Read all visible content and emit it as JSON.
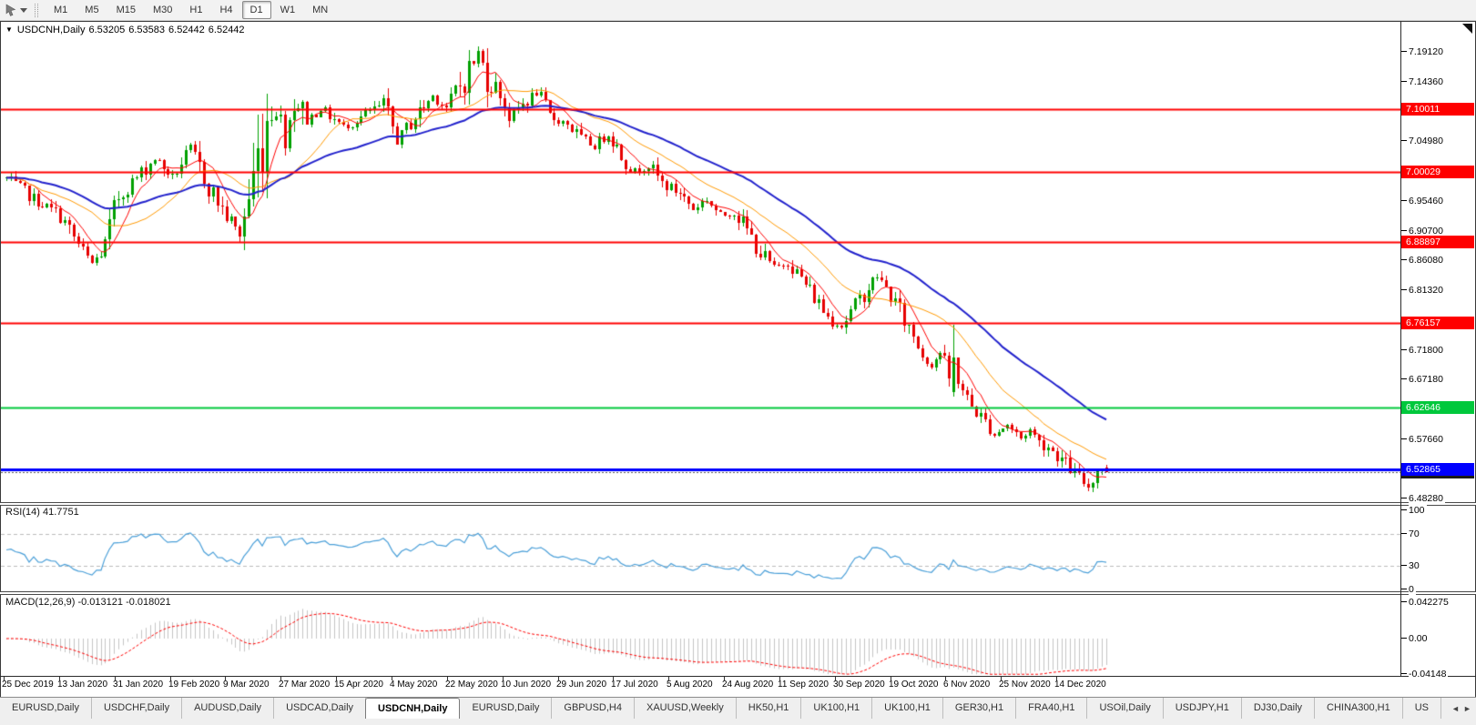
{
  "toolbar": {
    "timeframes": [
      "M1",
      "M5",
      "M15",
      "M30",
      "H1",
      "H4",
      "D1",
      "W1",
      "MN"
    ],
    "active_timeframe": "D1"
  },
  "chart": {
    "title": {
      "collapse_glyph": "▼",
      "symbol": "USDCNH,Daily",
      "open": "6.53205",
      "high": "6.53583",
      "low": "6.52442",
      "close": "6.52442"
    },
    "price_axis": {
      "ticks": [
        "7.19120",
        "7.14360",
        "7.04980",
        "6.95460",
        "6.90700",
        "6.86080",
        "6.81320",
        "6.71800",
        "6.67180",
        "6.57660",
        "6.48280"
      ],
      "badges": [
        {
          "label": "7.10011",
          "color": "#ff0000"
        },
        {
          "label": "7.00029",
          "color": "#ff0000"
        },
        {
          "label": "6.88897",
          "color": "#ff0000"
        },
        {
          "label": "6.76157",
          "color": "#ff0000"
        },
        {
          "label": "6.62646",
          "color": "#00c83c"
        },
        {
          "label": "6.52442",
          "color": "#1a1a1a"
        },
        {
          "label": "6.52865",
          "color": "#0000ff"
        }
      ]
    }
  },
  "indicators": {
    "rsi": {
      "label": "RSI(14) 41.7751",
      "axis_labels": [
        "100",
        "70",
        "30",
        "0"
      ]
    },
    "macd": {
      "label": "MACD(12,26,9) -0.013121 -0.018021",
      "axis_labels": [
        "0.042275",
        "0.00",
        "-0.04148"
      ]
    }
  },
  "tabs": {
    "items": [
      "EURUSD,Daily",
      "USDCHF,Daily",
      "AUDUSD,Daily",
      "USDCAD,Daily",
      "USDCNH,Daily",
      "EURUSD,Daily",
      "GBPUSD,H4",
      "XAUUSD,Weekly",
      "HK50,H1",
      "UK100,H1",
      "UK100,H1",
      "GER30,H1",
      "FRA40,H1",
      "USOil,Daily",
      "USDJPY,H1",
      "DJ30,Daily",
      "CHINA300,H1",
      "US"
    ],
    "active_index": 4,
    "nav_left_glyph": "◄",
    "nav_right_glyph": "►"
  },
  "chart_data": {
    "type": "candlestick",
    "symbol": "USDCNH",
    "timeframe": "Daily",
    "last_ohlc": {
      "open": 6.53205,
      "high": 6.53583,
      "low": 6.52442,
      "close": 6.52442
    },
    "bid_price": 6.52442,
    "candle_count": 246,
    "seed": 7,
    "up_color": "#00a000",
    "down_color": "#e60000",
    "price_path_anchors": [
      [
        0,
        6.99
      ],
      [
        6,
        6.958
      ],
      [
        12,
        6.932
      ],
      [
        17,
        6.872
      ],
      [
        19,
        6.855
      ],
      [
        22,
        6.882
      ],
      [
        25,
        6.962
      ],
      [
        29,
        6.992
      ],
      [
        33,
        7.022
      ],
      [
        37,
        6.992
      ],
      [
        41,
        7.038
      ],
      [
        45,
        6.978
      ],
      [
        49,
        6.93
      ],
      [
        52,
        6.902
      ],
      [
        55,
        6.99
      ],
      [
        58,
        7.088
      ],
      [
        60,
        7.112
      ],
      [
        62,
        7.052
      ],
      [
        64,
        7.118
      ],
      [
        67,
        7.082
      ],
      [
        70,
        7.102
      ],
      [
        75,
        7.072
      ],
      [
        80,
        7.092
      ],
      [
        84,
        7.108
      ],
      [
        87,
        7.052
      ],
      [
        91,
        7.088
      ],
      [
        95,
        7.122
      ],
      [
        98,
        7.102
      ],
      [
        101,
        7.138
      ],
      [
        103,
        7.162
      ],
      [
        105,
        7.188
      ],
      [
        107,
        7.152
      ],
      [
        110,
        7.128
      ],
      [
        112,
        7.088
      ],
      [
        115,
        7.108
      ],
      [
        118,
        7.128
      ],
      [
        121,
        7.088
      ],
      [
        125,
        7.078
      ],
      [
        128,
        7.052
      ],
      [
        131,
        7.042
      ],
      [
        134,
        7.062
      ],
      [
        137,
        7.028
      ],
      [
        140,
        7.0
      ],
      [
        143,
        7.012
      ],
      [
        146,
        6.982
      ],
      [
        150,
        6.968
      ],
      [
        153,
        6.942
      ],
      [
        156,
        6.958
      ],
      [
        159,
        6.93
      ],
      [
        162,
        6.938
      ],
      [
        165,
        6.908
      ],
      [
        168,
        6.872
      ],
      [
        171,
        6.848
      ],
      [
        174,
        6.858
      ],
      [
        177,
        6.832
      ],
      [
        180,
        6.802
      ],
      [
        183,
        6.772
      ],
      [
        186,
        6.757
      ],
      [
        189,
        6.788
      ],
      [
        192,
        6.818
      ],
      [
        194,
        6.836
      ],
      [
        197,
        6.805
      ],
      [
        200,
        6.765
      ],
      [
        202,
        6.742
      ],
      [
        204,
        6.712
      ],
      [
        206,
        6.695
      ],
      [
        208,
        6.716
      ],
      [
        210,
        6.672
      ],
      [
        211,
        6.655
      ],
      [
        212,
        6.672
      ],
      [
        214,
        6.638
      ],
      [
        217,
        6.612
      ],
      [
        220,
        6.585
      ],
      [
        223,
        6.6
      ],
      [
        226,
        6.578
      ],
      [
        228,
        6.592
      ],
      [
        230,
        6.572
      ],
      [
        232,
        6.565
      ],
      [
        234,
        6.552
      ],
      [
        236,
        6.538
      ],
      [
        238,
        6.522
      ],
      [
        240,
        6.508
      ],
      [
        241,
        6.502
      ],
      [
        242,
        6.515
      ],
      [
        243,
        6.528
      ],
      [
        244,
        6.531
      ],
      [
        245,
        6.5244
      ]
    ],
    "volatility_boost": [
      {
        "from": 55,
        "to": 66,
        "factor": 2.1
      },
      {
        "from": 100,
        "to": 108,
        "factor": 1.5
      }
    ],
    "overrides": [
      {
        "index": 211,
        "open": 6.652,
        "high": 6.758,
        "low": 6.645,
        "close": 6.706
      },
      {
        "index": 245,
        "open": 6.53205,
        "high": 6.53583,
        "low": 6.52442,
        "close": 6.52442
      }
    ],
    "moving_averages": [
      {
        "type": "sma",
        "period": 7,
        "color": "#ff0000",
        "width": 1
      },
      {
        "type": "sma",
        "period": 20,
        "color": "#ff9900",
        "width": 1
      },
      {
        "type": "ema",
        "period": 45,
        "color": "#2222cc",
        "width": 2
      }
    ],
    "horizontal_lines": [
      {
        "price": 7.10011,
        "color": "#ff0000",
        "width": 2
      },
      {
        "price": 7.00029,
        "color": "#ff0000",
        "width": 2
      },
      {
        "price": 6.88897,
        "color": "#ff0000",
        "width": 2
      },
      {
        "price": 6.76157,
        "color": "#ff0000",
        "width": 2
      },
      {
        "price": 6.62646,
        "color": "#00c83c",
        "width": 2
      },
      {
        "price": 6.52865,
        "color": "#0000ff",
        "width": 3
      }
    ],
    "bid_line": {
      "price": 6.52442,
      "style": "dotted",
      "color": "#555555"
    },
    "price_axis_ticks": [
      7.1912,
      7.1436,
      7.0498,
      6.9546,
      6.907,
      6.8608,
      6.8132,
      6.718,
      6.6718,
      6.5766,
      6.4828
    ],
    "rsi": {
      "period": 14,
      "value": 41.7751,
      "levels": [
        70,
        30
      ],
      "range": [
        0,
        100
      ],
      "color": "#4a9fd8",
      "level_color": "#bbbbbb"
    },
    "macd": {
      "fast": 12,
      "slow": 26,
      "signal": 9,
      "macd_value": -0.013121,
      "signal_value": -0.018021,
      "histogram_color": "#c4c4c4",
      "signal_color": "#ff0000",
      "scale_max": 0.042275,
      "scale_min": -0.04148
    },
    "x_labels": [
      "25 Dec 2019",
      "13 Jan 2020",
      "31 Jan 2020",
      "19 Feb 2020",
      "9 Mar 2020",
      "27 Mar 2020",
      "15 Apr 2020",
      "4 May 2020",
      "22 May 2020",
      "10 Jun 2020",
      "29 Jun 2020",
      "17 Jul 2020",
      "5 Aug 2020",
      "24 Aug 2020",
      "11 Sep 2020",
      "30 Sep 2020",
      "19 Oct 2020",
      "6 Nov 2020",
      "25 Nov 2020",
      "14 Dec 2020"
    ]
  }
}
